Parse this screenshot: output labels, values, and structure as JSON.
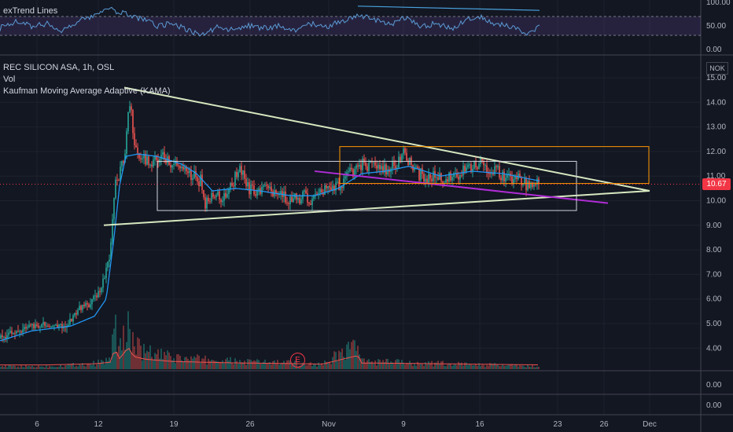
{
  "pane_labels": {
    "rsi": "exTrend Lines",
    "main_title": "REC SILICON ASA, 1h, OSL",
    "volume": "Vol",
    "kama": "Kaufman Moving Average Adaptive (KAMA)"
  },
  "currency": "NOK",
  "last_price": "10.67",
  "earnings_marker": "E",
  "colors": {
    "background": "#131722",
    "up": "#26a69a",
    "down": "#ef5350",
    "kama": "#2196f3",
    "triangle": "#d7e8c0",
    "box_white": "#d1d4dc",
    "box_orange": "#ff9800",
    "purple_line": "#b02cd6",
    "rsi_line": "#5b9bd5"
  },
  "chart_data": {
    "type": "candlestick",
    "main_pane": {
      "y_ticks": [
        "15.00",
        "14.00",
        "13.00",
        "12.00",
        "11.00",
        "10.00",
        "9.00",
        "8.00",
        "7.00",
        "6.00",
        "5.00",
        "4.00"
      ],
      "ylim": [
        3.0,
        15.3
      ],
      "x_ticks": [
        "6",
        "12",
        "19",
        "26",
        "Nov",
        "9",
        "16",
        "23",
        "26",
        "Dec"
      ],
      "price_trend": [
        [
          0,
          4.4
        ],
        [
          30,
          4.8
        ],
        [
          60,
          5.0
        ],
        [
          85,
          4.9
        ],
        [
          100,
          5.6
        ],
        [
          115,
          5.8
        ],
        [
          128,
          6.4
        ],
        [
          135,
          7.2
        ],
        [
          140,
          7.8
        ],
        [
          146,
          10.5
        ],
        [
          152,
          11.2
        ],
        [
          158,
          11.6
        ],
        [
          163,
          13.6
        ],
        [
          166,
          14.0
        ],
        [
          170,
          12.2
        ],
        [
          176,
          11.8
        ],
        [
          185,
          11.7
        ],
        [
          195,
          11.6
        ],
        [
          205,
          11.8
        ],
        [
          220,
          11.5
        ],
        [
          235,
          11.3
        ],
        [
          245,
          11.0
        ],
        [
          255,
          10.8
        ],
        [
          262,
          9.8
        ],
        [
          270,
          10.3
        ],
        [
          285,
          10.1
        ],
        [
          298,
          10.9
        ],
        [
          305,
          11.3
        ],
        [
          315,
          10.5
        ],
        [
          325,
          10.3
        ],
        [
          340,
          10.4
        ],
        [
          355,
          10.3
        ],
        [
          370,
          10.0
        ],
        [
          385,
          10.2
        ],
        [
          395,
          10.0
        ],
        [
          410,
          10.4
        ],
        [
          425,
          10.5
        ],
        [
          440,
          10.9
        ],
        [
          455,
          11.4
        ],
        [
          465,
          11.5
        ],
        [
          480,
          11.3
        ],
        [
          495,
          11.2
        ],
        [
          505,
          11.5
        ],
        [
          515,
          12.0
        ],
        [
          520,
          11.6
        ],
        [
          530,
          11.1
        ],
        [
          540,
          11.0
        ],
        [
          555,
          10.9
        ],
        [
          570,
          10.9
        ],
        [
          585,
          11.1
        ],
        [
          600,
          11.3
        ],
        [
          612,
          11.5
        ],
        [
          625,
          11.3
        ],
        [
          640,
          11.0
        ],
        [
          655,
          10.9
        ],
        [
          665,
          10.8
        ],
        [
          672,
          10.5
        ],
        [
          680,
          10.7
        ],
        [
          686,
          10.67
        ]
      ],
      "volume_trend": [
        [
          0,
          0.3
        ],
        [
          60,
          0.3
        ],
        [
          120,
          0.6
        ],
        [
          140,
          1.0
        ],
        [
          146,
          4.5
        ],
        [
          152,
          2.0
        ],
        [
          158,
          3.5
        ],
        [
          163,
          5.0
        ],
        [
          170,
          2.5
        ],
        [
          185,
          1.8
        ],
        [
          220,
          1.2
        ],
        [
          262,
          1.0
        ],
        [
          305,
          0.8
        ],
        [
          355,
          0.7
        ],
        [
          410,
          0.5
        ],
        [
          455,
          2.8
        ],
        [
          460,
          0.8
        ],
        [
          515,
          0.7
        ],
        [
          600,
          0.5
        ],
        [
          686,
          0.3
        ]
      ],
      "volume_max": 5.0,
      "kama_trend": [
        [
          0,
          4.3
        ],
        [
          40,
          4.7
        ],
        [
          90,
          4.9
        ],
        [
          120,
          5.3
        ],
        [
          135,
          6.0
        ],
        [
          145,
          8.5
        ],
        [
          152,
          10.6
        ],
        [
          160,
          11.8
        ],
        [
          175,
          11.9
        ],
        [
          200,
          11.8
        ],
        [
          230,
          11.5
        ],
        [
          250,
          11.1
        ],
        [
          270,
          10.4
        ],
        [
          300,
          10.5
        ],
        [
          330,
          10.4
        ],
        [
          370,
          10.2
        ],
        [
          400,
          10.2
        ],
        [
          430,
          10.5
        ],
        [
          460,
          11.1
        ],
        [
          490,
          11.2
        ],
        [
          520,
          11.4
        ],
        [
          560,
          11.0
        ],
        [
          600,
          11.2
        ],
        [
          640,
          11.1
        ],
        [
          686,
          10.8
        ]
      ]
    },
    "rsi_pane": {
      "y_ticks": [
        "100.00",
        "50.00",
        "0.00"
      ],
      "ylim": [
        0,
        100
      ],
      "band": [
        30,
        70
      ],
      "rsi_trend": [
        [
          0,
          45
        ],
        [
          20,
          60
        ],
        [
          40,
          50
        ],
        [
          60,
          55
        ],
        [
          80,
          40
        ],
        [
          100,
          60
        ],
        [
          120,
          70
        ],
        [
          140,
          85
        ],
        [
          160,
          75
        ],
        [
          180,
          65
        ],
        [
          200,
          50
        ],
        [
          220,
          55
        ],
        [
          240,
          40
        ],
        [
          260,
          30
        ],
        [
          275,
          48
        ],
        [
          295,
          42
        ],
        [
          315,
          50
        ],
        [
          335,
          45
        ],
        [
          355,
          50
        ],
        [
          375,
          42
        ],
        [
          395,
          55
        ],
        [
          415,
          48
        ],
        [
          435,
          60
        ],
        [
          455,
          72
        ],
        [
          475,
          65
        ],
        [
          495,
          52
        ],
        [
          515,
          68
        ],
        [
          535,
          50
        ],
        [
          555,
          55
        ],
        [
          575,
          45
        ],
        [
          595,
          65
        ],
        [
          610,
          70
        ],
        [
          625,
          58
        ],
        [
          640,
          52
        ],
        [
          655,
          45
        ],
        [
          670,
          35
        ],
        [
          686,
          48
        ]
      ]
    },
    "sub_panes": [
      {
        "ticks": [
          "0.00"
        ]
      },
      {
        "ticks": [
          "0.00"
        ]
      }
    ],
    "drawings": {
      "triangle_upper": [
        [
          158,
          14.6
        ],
        [
          826,
          10.4
        ]
      ],
      "triangle_lower": [
        [
          132,
          9.0
        ],
        [
          826,
          10.4
        ]
      ],
      "white_box": [
        [
          200,
          11.6
        ],
        [
          733,
          9.6
        ]
      ],
      "orange_box": [
        [
          432,
          12.2
        ],
        [
          825,
          10.7
        ]
      ],
      "purple_line": [
        [
          400,
          11.2
        ],
        [
          773,
          9.9
        ]
      ],
      "rsi_trend_line": [
        [
          455,
          92
        ],
        [
          686,
          83
        ]
      ]
    }
  }
}
